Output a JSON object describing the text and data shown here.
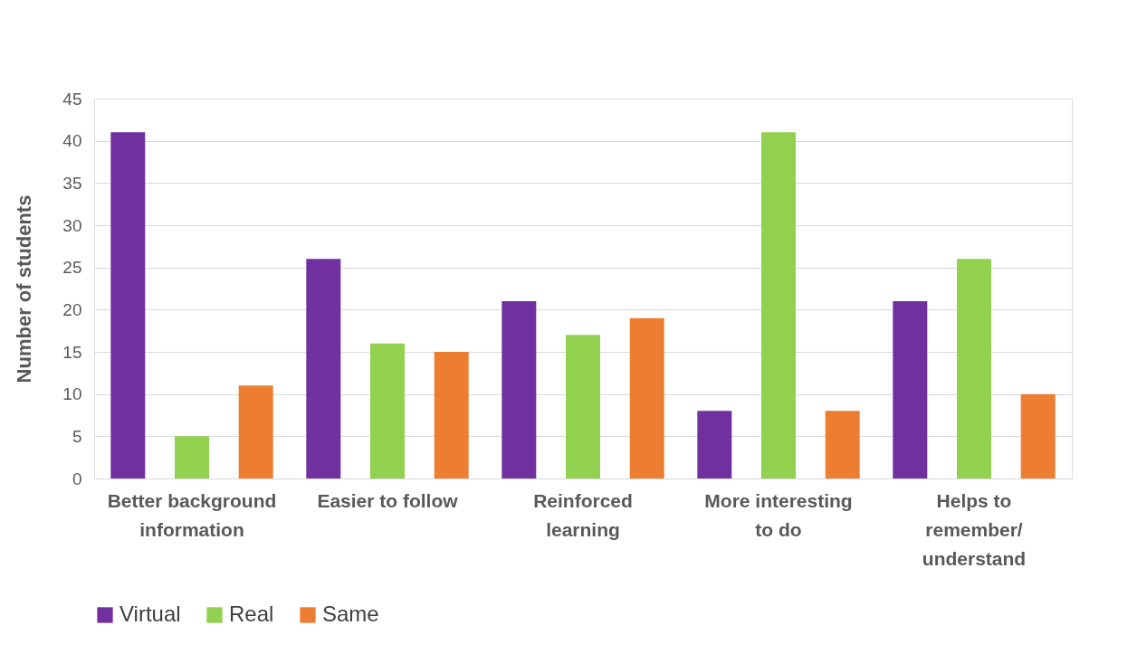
{
  "chart_data": {
    "type": "bar",
    "ylabel": "Number of students",
    "categories": [
      "Better background\ninformation",
      "Easier to follow",
      "Reinforced\nlearning",
      "More interesting\nto do",
      "Helps to\nremember/\nunderstand"
    ],
    "series": [
      {
        "name": "Virtual",
        "color": "#7030a0",
        "values": [
          41,
          26,
          21,
          8,
          21
        ]
      },
      {
        "name": "Real",
        "color": "#92d050",
        "values": [
          5,
          16,
          17,
          41,
          26
        ]
      },
      {
        "name": "Same",
        "color": "#ed7d31",
        "values": [
          11,
          15,
          19,
          8,
          10
        ]
      }
    ],
    "ylim": [
      0,
      45
    ],
    "yticks": [
      0,
      5,
      10,
      15,
      20,
      25,
      30,
      35,
      40,
      45
    ],
    "grid": "y",
    "legend": "bottom"
  }
}
